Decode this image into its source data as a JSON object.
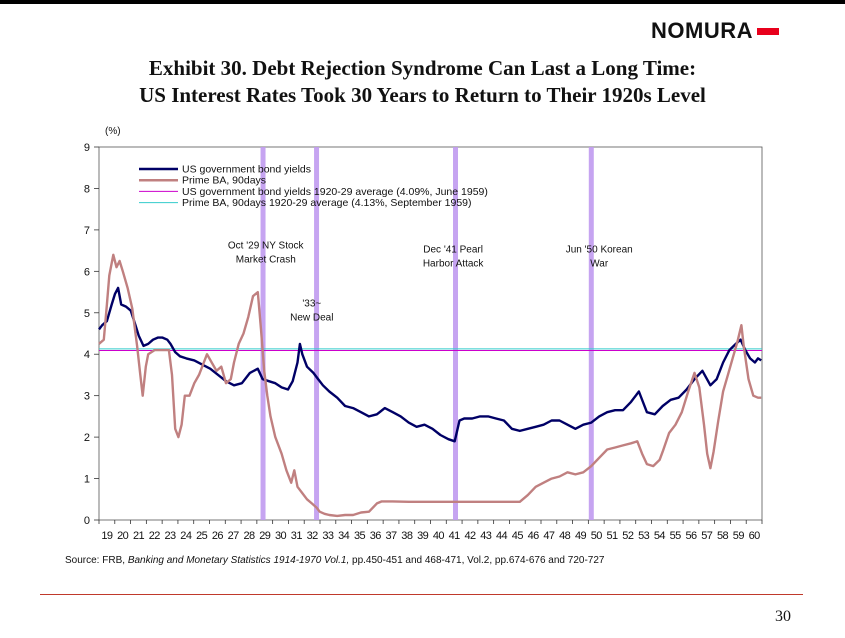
{
  "brand": {
    "name": "NOMURA",
    "accent": "#e8001c"
  },
  "title": {
    "line1": "Exhibit 30.  Debt Rejection Syndrome Can Last a Long Time:",
    "line2": "US Interest Rates Took 30 Years to Return to Their 1920s Level"
  },
  "source": {
    "prefix": "Source: FRB, ",
    "italic": "Banking and Monetary Statistics 1914-1970 Vol.1,",
    "suffix": " pp.450-451 and 468-471, Vol.2, pp.674-676 and 720-727"
  },
  "page_number": "30",
  "chart_data": {
    "type": "line",
    "ylabel": "(%)",
    "ylim": [
      0,
      9
    ],
    "yticks": [
      "0",
      "1",
      "2",
      "3",
      "4",
      "5",
      "6",
      "7",
      "8",
      "9"
    ],
    "xlim": [
      1919.5,
      1961.25
    ],
    "x_tick_labels": [
      "19",
      "20",
      "21",
      "22",
      "23",
      "24",
      "25",
      "26",
      "27",
      "28",
      "29",
      "30",
      "31",
      "32",
      "33",
      "34",
      "35",
      "36",
      "37",
      "38",
      "39",
      "40",
      "41",
      "42",
      "43",
      "44",
      "45",
      "46",
      "47",
      "48",
      "49",
      "50",
      "51",
      "52",
      "53",
      "54",
      "55",
      "56",
      "57",
      "58",
      "59",
      "60"
    ],
    "series": [
      {
        "name": "US government bond yields",
        "color": "#000066",
        "points": [
          [
            1919.5,
            4.6
          ],
          [
            1919.7,
            4.7
          ],
          [
            1920.0,
            4.8
          ],
          [
            1920.3,
            5.2
          ],
          [
            1920.5,
            5.45
          ],
          [
            1920.7,
            5.6
          ],
          [
            1920.9,
            5.2
          ],
          [
            1921.2,
            5.15
          ],
          [
            1921.5,
            5.05
          ],
          [
            1921.8,
            4.7
          ],
          [
            1922.0,
            4.45
          ],
          [
            1922.3,
            4.2
          ],
          [
            1922.6,
            4.25
          ],
          [
            1922.9,
            4.35
          ],
          [
            1923.2,
            4.4
          ],
          [
            1923.5,
            4.4
          ],
          [
            1923.8,
            4.35
          ],
          [
            1924.0,
            4.25
          ],
          [
            1924.3,
            4.05
          ],
          [
            1924.6,
            3.95
          ],
          [
            1925.0,
            3.9
          ],
          [
            1925.5,
            3.85
          ],
          [
            1926.0,
            3.75
          ],
          [
            1926.5,
            3.65
          ],
          [
            1927.0,
            3.5
          ],
          [
            1927.5,
            3.35
          ],
          [
            1928.0,
            3.25
          ],
          [
            1928.5,
            3.3
          ],
          [
            1929.0,
            3.55
          ],
          [
            1929.5,
            3.65
          ],
          [
            1929.8,
            3.4
          ],
          [
            1930.2,
            3.35
          ],
          [
            1930.6,
            3.3
          ],
          [
            1931.0,
            3.2
          ],
          [
            1931.4,
            3.15
          ],
          [
            1931.7,
            3.35
          ],
          [
            1932.0,
            3.8
          ],
          [
            1932.15,
            4.25
          ],
          [
            1932.3,
            4.0
          ],
          [
            1932.6,
            3.7
          ],
          [
            1933.0,
            3.55
          ],
          [
            1933.3,
            3.4
          ],
          [
            1933.6,
            3.25
          ],
          [
            1934.0,
            3.1
          ],
          [
            1934.5,
            2.95
          ],
          [
            1935.0,
            2.75
          ],
          [
            1935.5,
            2.7
          ],
          [
            1936.0,
            2.6
          ],
          [
            1936.5,
            2.5
          ],
          [
            1937.0,
            2.55
          ],
          [
            1937.5,
            2.7
          ],
          [
            1938.0,
            2.6
          ],
          [
            1938.5,
            2.5
          ],
          [
            1939.0,
            2.35
          ],
          [
            1939.5,
            2.25
          ],
          [
            1940.0,
            2.3
          ],
          [
            1940.5,
            2.2
          ],
          [
            1941.0,
            2.05
          ],
          [
            1941.5,
            1.95
          ],
          [
            1941.9,
            1.9
          ],
          [
            1942.2,
            2.4
          ],
          [
            1942.5,
            2.45
          ],
          [
            1943.0,
            2.45
          ],
          [
            1943.5,
            2.5
          ],
          [
            1944.0,
            2.5
          ],
          [
            1944.5,
            2.45
          ],
          [
            1945.0,
            2.4
          ],
          [
            1945.5,
            2.2
          ],
          [
            1946.0,
            2.15
          ],
          [
            1946.5,
            2.2
          ],
          [
            1947.0,
            2.25
          ],
          [
            1947.5,
            2.3
          ],
          [
            1948.0,
            2.4
          ],
          [
            1948.5,
            2.4
          ],
          [
            1949.0,
            2.3
          ],
          [
            1949.5,
            2.2
          ],
          [
            1950.0,
            2.3
          ],
          [
            1950.5,
            2.35
          ],
          [
            1951.0,
            2.5
          ],
          [
            1951.5,
            2.6
          ],
          [
            1952.0,
            2.65
          ],
          [
            1952.5,
            2.65
          ],
          [
            1953.0,
            2.85
          ],
          [
            1953.5,
            3.1
          ],
          [
            1954.0,
            2.6
          ],
          [
            1954.5,
            2.55
          ],
          [
            1955.0,
            2.75
          ],
          [
            1955.5,
            2.9
          ],
          [
            1956.0,
            2.95
          ],
          [
            1956.5,
            3.15
          ],
          [
            1957.0,
            3.4
          ],
          [
            1957.5,
            3.6
          ],
          [
            1958.0,
            3.25
          ],
          [
            1958.4,
            3.4
          ],
          [
            1958.8,
            3.8
          ],
          [
            1959.2,
            4.1
          ],
          [
            1959.6,
            4.25
          ],
          [
            1959.9,
            4.35
          ],
          [
            1960.2,
            4.1
          ],
          [
            1960.5,
            3.9
          ],
          [
            1960.8,
            3.8
          ],
          [
            1961.0,
            3.9
          ],
          [
            1961.2,
            3.85
          ]
        ]
      },
      {
        "name": "Prime BA, 90days",
        "color": "#c08080",
        "points": [
          [
            1919.5,
            4.25
          ],
          [
            1919.8,
            4.35
          ],
          [
            1920.0,
            5.2
          ],
          [
            1920.15,
            5.9
          ],
          [
            1920.4,
            6.4
          ],
          [
            1920.6,
            6.1
          ],
          [
            1920.8,
            6.25
          ],
          [
            1921.0,
            6.0
          ],
          [
            1921.3,
            5.6
          ],
          [
            1921.6,
            5.1
          ],
          [
            1921.9,
            4.2
          ],
          [
            1922.1,
            3.5
          ],
          [
            1922.25,
            3.0
          ],
          [
            1922.45,
            3.7
          ],
          [
            1922.6,
            4.0
          ],
          [
            1923.0,
            4.1
          ],
          [
            1923.5,
            4.1
          ],
          [
            1923.9,
            4.1
          ],
          [
            1924.1,
            3.5
          ],
          [
            1924.3,
            2.2
          ],
          [
            1924.5,
            2.0
          ],
          [
            1924.7,
            2.3
          ],
          [
            1924.9,
            3.0
          ],
          [
            1925.2,
            3.0
          ],
          [
            1925.5,
            3.3
          ],
          [
            1925.8,
            3.5
          ],
          [
            1926.0,
            3.7
          ],
          [
            1926.3,
            4.0
          ],
          [
            1926.6,
            3.8
          ],
          [
            1926.9,
            3.6
          ],
          [
            1927.2,
            3.7
          ],
          [
            1927.5,
            3.3
          ],
          [
            1927.8,
            3.4
          ],
          [
            1928.0,
            3.8
          ],
          [
            1928.3,
            4.25
          ],
          [
            1928.6,
            4.5
          ],
          [
            1928.9,
            4.9
          ],
          [
            1929.2,
            5.4
          ],
          [
            1929.5,
            5.5
          ],
          [
            1929.7,
            4.6
          ],
          [
            1929.9,
            3.6
          ],
          [
            1930.1,
            3.0
          ],
          [
            1930.3,
            2.5
          ],
          [
            1930.6,
            2.0
          ],
          [
            1931.0,
            1.6
          ],
          [
            1931.3,
            1.2
          ],
          [
            1931.6,
            0.9
          ],
          [
            1931.8,
            1.2
          ],
          [
            1932.0,
            0.8
          ],
          [
            1932.3,
            0.65
          ],
          [
            1932.6,
            0.5
          ],
          [
            1932.9,
            0.4
          ],
          [
            1933.2,
            0.3
          ],
          [
            1933.4,
            0.2
          ],
          [
            1933.7,
            0.15
          ],
          [
            1934.0,
            0.12
          ],
          [
            1934.5,
            0.1
          ],
          [
            1935.0,
            0.12
          ],
          [
            1935.5,
            0.12
          ],
          [
            1936.0,
            0.18
          ],
          [
            1936.5,
            0.2
          ],
          [
            1937.0,
            0.4
          ],
          [
            1937.3,
            0.45
          ],
          [
            1938.0,
            0.45
          ],
          [
            1939.0,
            0.44
          ],
          [
            1940.0,
            0.44
          ],
          [
            1941.0,
            0.44
          ],
          [
            1942.0,
            0.44
          ],
          [
            1943.0,
            0.44
          ],
          [
            1944.0,
            0.44
          ],
          [
            1945.0,
            0.44
          ],
          [
            1946.0,
            0.44
          ],
          [
            1946.5,
            0.6
          ],
          [
            1947.0,
            0.8
          ],
          [
            1947.5,
            0.9
          ],
          [
            1948.0,
            1.0
          ],
          [
            1948.5,
            1.05
          ],
          [
            1949.0,
            1.15
          ],
          [
            1949.5,
            1.1
          ],
          [
            1950.0,
            1.15
          ],
          [
            1950.5,
            1.3
          ],
          [
            1951.0,
            1.5
          ],
          [
            1951.5,
            1.7
          ],
          [
            1952.0,
            1.75
          ],
          [
            1952.5,
            1.8
          ],
          [
            1953.0,
            1.85
          ],
          [
            1953.4,
            1.9
          ],
          [
            1953.7,
            1.6
          ],
          [
            1954.0,
            1.35
          ],
          [
            1954.4,
            1.3
          ],
          [
            1954.8,
            1.45
          ],
          [
            1955.0,
            1.65
          ],
          [
            1955.4,
            2.1
          ],
          [
            1955.8,
            2.3
          ],
          [
            1956.2,
            2.6
          ],
          [
            1956.6,
            3.1
          ],
          [
            1957.0,
            3.55
          ],
          [
            1957.3,
            3.2
          ],
          [
            1957.6,
            2.3
          ],
          [
            1957.8,
            1.6
          ],
          [
            1958.0,
            1.25
          ],
          [
            1958.2,
            1.65
          ],
          [
            1958.5,
            2.4
          ],
          [
            1958.8,
            3.1
          ],
          [
            1959.1,
            3.5
          ],
          [
            1959.4,
            3.9
          ],
          [
            1959.7,
            4.3
          ],
          [
            1959.95,
            4.7
          ],
          [
            1960.1,
            4.2
          ],
          [
            1960.4,
            3.4
          ],
          [
            1960.7,
            3.0
          ],
          [
            1961.0,
            2.95
          ],
          [
            1961.2,
            2.95
          ]
        ]
      },
      {
        "name": "US government bond yields 1920-29 average (4.09%, June 1959)",
        "color": "#cc00cc",
        "value": 4.09
      },
      {
        "name": "Prime BA, 90days 1920-29 average (4.13%, September 1959)",
        "color": "#33cccc",
        "value": 4.13
      }
    ],
    "event_lines": [
      {
        "x": 1929.83,
        "color": "#c09af0"
      },
      {
        "x": 1933.2,
        "color": "#c09af0"
      },
      {
        "x": 1941.95,
        "color": "#c09af0"
      },
      {
        "x": 1950.5,
        "color": "#c09af0"
      }
    ],
    "annotations": [
      {
        "x": 1930.0,
        "y": 6.55,
        "lines": [
          "Oct '29 NY Stock",
          "Market Crash"
        ],
        "anchor": "middle"
      },
      {
        "x": 1932.9,
        "y": 5.15,
        "lines": [
          "'33~",
          "New Deal"
        ],
        "anchor": "middle"
      },
      {
        "x": 1941.8,
        "y": 6.45,
        "lines": [
          "Dec '41 Pearl",
          "Harbor Attack"
        ],
        "anchor": "middle"
      },
      {
        "x": 1951.0,
        "y": 6.45,
        "lines": [
          "Jun '50 Korean",
          "War"
        ],
        "anchor": "middle"
      }
    ],
    "legend": {
      "position": "top-left"
    }
  }
}
